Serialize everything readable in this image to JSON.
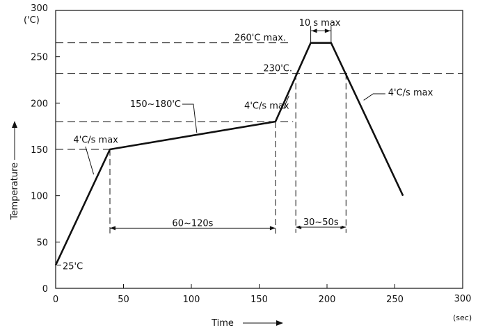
{
  "chart_data": {
    "type": "line",
    "title": "",
    "xlabel": "Time",
    "ylabel": "Temperature",
    "xunit": "(sec)",
    "yunit": "('C)",
    "xlim": [
      0,
      300
    ],
    "ylim": [
      0,
      300
    ],
    "xticks": [
      "0",
      "50",
      "100",
      "150",
      "200",
      "250",
      "300"
    ],
    "yticks": [
      "0",
      "50",
      "100",
      "150",
      "200",
      "250",
      "300"
    ],
    "grid": false,
    "series": [
      {
        "x": [
          0,
          40,
          162,
          188,
          203,
          256
        ],
        "y": [
          25,
          150,
          180,
          265,
          265,
          100
        ]
      }
    ],
    "reference_lines": [
      {
        "y": 265,
        "label": "260'C max."
      },
      {
        "y": 232,
        "label": "230'C."
      },
      {
        "y": 180,
        "label": "150~180'C"
      },
      {
        "y": 150,
        "label": ""
      }
    ],
    "spans": [
      {
        "from": 40,
        "to": 162,
        "label": "60~120s"
      },
      {
        "from": 177,
        "to": 214,
        "label": "30~50s"
      },
      {
        "from": 188,
        "to": 203,
        "label": "10  s  max"
      }
    ],
    "annotations": [
      {
        "text": "25'C"
      },
      {
        "text": "4'C/s  max"
      },
      {
        "text": "4'C/s  max"
      },
      {
        "text": "4'C/s  max"
      }
    ]
  }
}
